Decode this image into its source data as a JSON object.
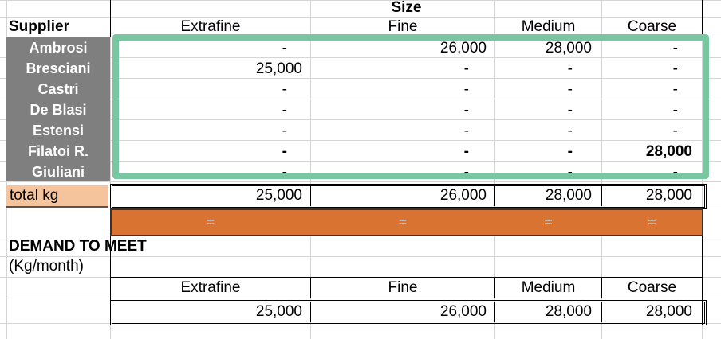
{
  "header": {
    "size_label": "Size",
    "supplier_label": "Supplier",
    "columns": [
      "Extrafine",
      "Fine",
      "Medium",
      "Coarse"
    ]
  },
  "suppliers": [
    {
      "name": "Ambrosi",
      "values": [
        "-",
        "26,000",
        "28,000",
        "-"
      ]
    },
    {
      "name": "Bresciani",
      "values": [
        "25,000",
        "-",
        "-",
        "-"
      ]
    },
    {
      "name": "Castri",
      "values": [
        "-",
        "-",
        "-",
        "-"
      ]
    },
    {
      "name": "De Blasi",
      "values": [
        "-",
        "-",
        "-",
        "-"
      ]
    },
    {
      "name": "Estensi",
      "values": [
        "-",
        "-",
        "-",
        "-"
      ]
    },
    {
      "name": "Filatoi R.",
      "values": [
        "-",
        "-",
        "-",
        "28,000"
      ]
    },
    {
      "name": "Giuliani",
      "values": [
        "-",
        "-",
        "-",
        "-"
      ]
    }
  ],
  "total": {
    "label": "total kg",
    "values": [
      "25,000",
      "26,000",
      "28,000",
      "28,000"
    ]
  },
  "constraint_row": {
    "symbols": [
      "=",
      "=",
      "=",
      "="
    ]
  },
  "demand": {
    "title": "DEMAND TO MEET",
    "unit": "(Kg/month)",
    "columns": [
      "Extrafine",
      "Fine",
      "Medium",
      "Coarse"
    ],
    "values": [
      "25,000",
      "26,000",
      "28,000",
      "28,000"
    ]
  },
  "colors": {
    "supplier_bg": "#7f7f7f",
    "total_label_bg": "#f5c49c",
    "constraint_bg": "#d97331",
    "selection_border": "#79c7a0",
    "gridline": "#d4d4d4"
  }
}
